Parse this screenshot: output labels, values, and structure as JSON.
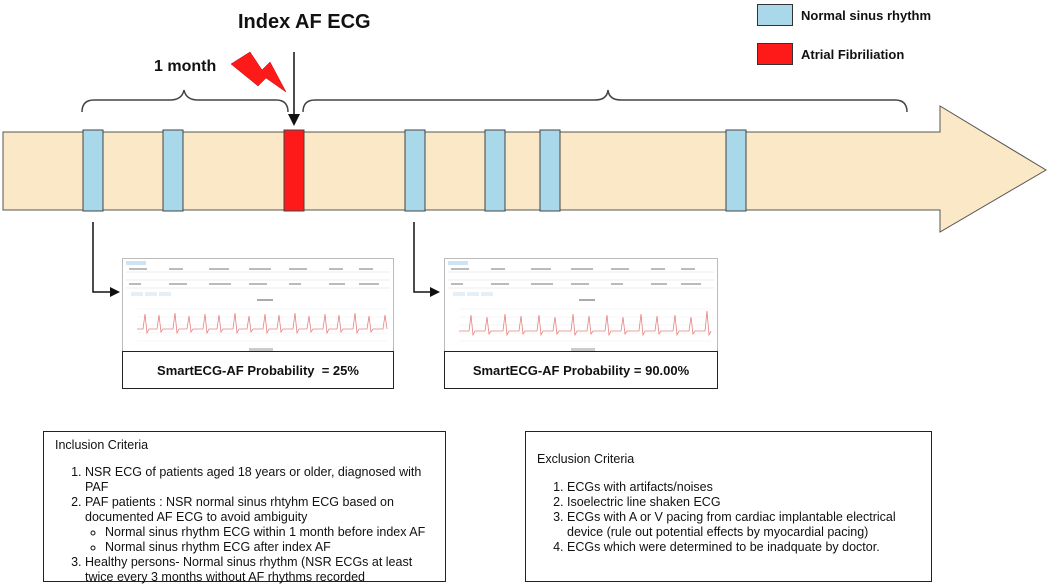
{
  "title": "Index AF ECG",
  "month_label": "1 month",
  "legend": [
    {
      "label": "Normal sinus rhythm",
      "color": "#a8d8ea"
    },
    {
      "label": "Atrial Fibriliation",
      "color": "#ff1a1a"
    }
  ],
  "colors": {
    "arrow_fill": "#fbe8c6",
    "arrow_stroke": "#555555",
    "ecg_trace": "#e88080",
    "lightning": "#ff1a1a"
  },
  "ecg_cards": [
    {
      "probability_label": "SmartECG-AF Probability  = 25%"
    },
    {
      "probability_label": "SmartECG-AF Probability = 90.00%"
    }
  ],
  "inclusion": {
    "heading": "Inclusion Criteria",
    "items": [
      {
        "text": "NSR ECG of  patients aged 18 years or older, diagnosed with PAF"
      },
      {
        "text": "PAF patients : NSR normal sinus rhtyhm ECG based on documented AF ECG to avoid ambiguity",
        "subitems": [
          "Normal sinus rhythm ECG within 1 month before index AF",
          "Normal sinus rhythm ECG after index AF"
        ]
      },
      {
        "text": "Healthy persons- Normal sinus rhythm (NSR ECGs at least twice every 3 months without AF rhythms recorded"
      }
    ]
  },
  "exclusion": {
    "heading": "Exclusion Criteria",
    "items": [
      "ECGs with artifacts/noises",
      "Isoelectric line shaken ECG",
      "ECGs with A or V pacing from cardiac implantable electrical device (rule out potential effects by myocardial pacing)",
      "ECGs which were determined to be inadquate by doctor."
    ]
  }
}
